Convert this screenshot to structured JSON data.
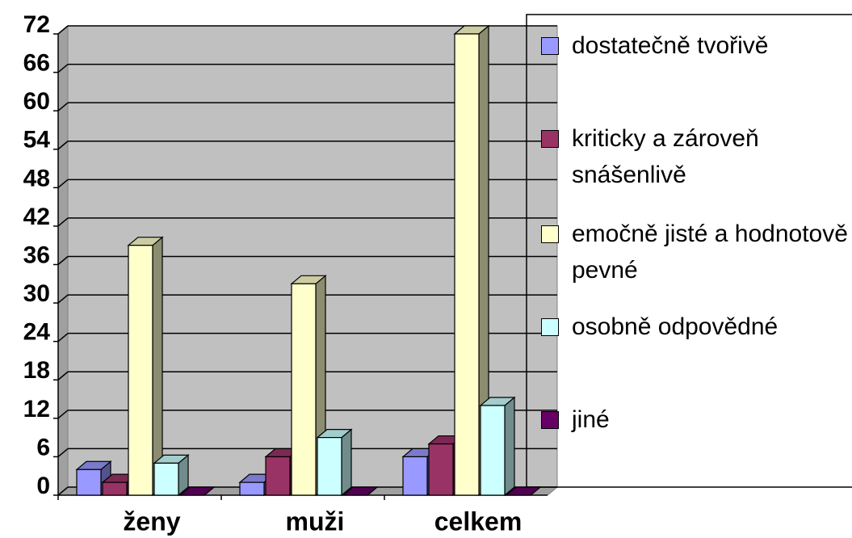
{
  "chart_data": {
    "type": "bar3d",
    "categories": [
      "ženy",
      "muži",
      "celkem"
    ],
    "series": [
      {
        "name": "dostatečně tvořivě",
        "color": "#9999ff",
        "values": [
          4,
          2,
          6
        ]
      },
      {
        "name": "kriticky a zároveň snášenlivě",
        "color": "#993366",
        "values": [
          2,
          6,
          8
        ]
      },
      {
        "name": "emočně jisté a hodnotově pevné",
        "color": "#ffffcc",
        "values": [
          39,
          33,
          72
        ]
      },
      {
        "name": "osobně odpovědné",
        "color": "#ccffff",
        "values": [
          5,
          9,
          14
        ]
      },
      {
        "name": "jiné",
        "color": "#660066",
        "values": [
          0,
          0,
          0
        ]
      }
    ],
    "ylim": [
      0,
      72
    ],
    "yticks": [
      0,
      6,
      12,
      18,
      24,
      30,
      36,
      42,
      48,
      54,
      60,
      66,
      72
    ],
    "grid": true,
    "legend": "right",
    "plot_background": "#c0c0c0"
  }
}
